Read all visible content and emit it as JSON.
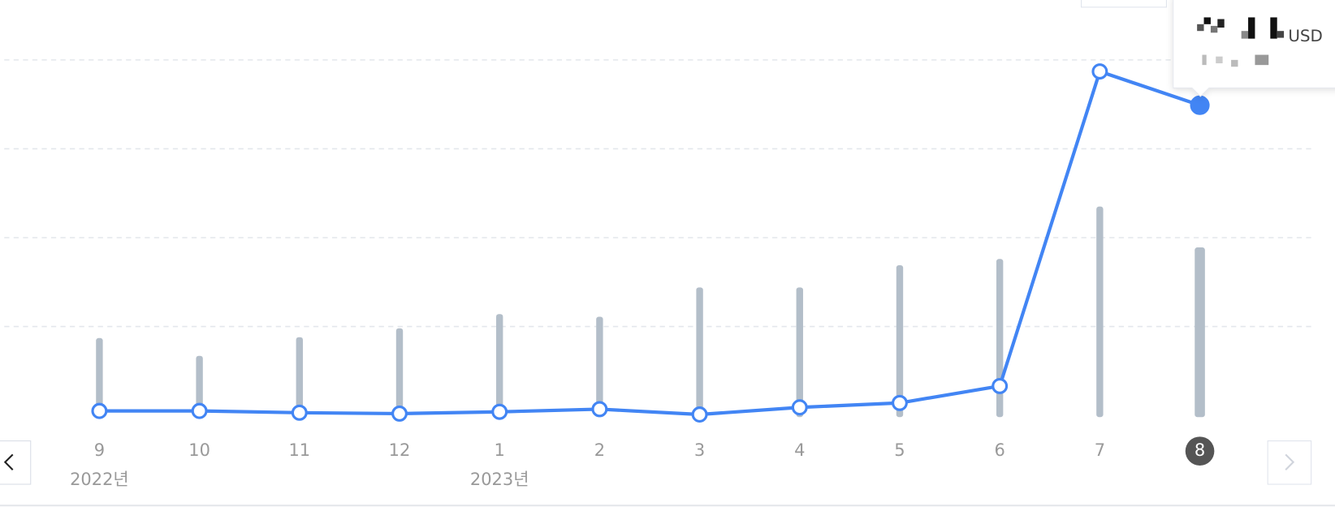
{
  "chart_data": {
    "type": "line-bar",
    "categories": [
      "9",
      "10",
      "11",
      "12",
      "1",
      "2",
      "3",
      "4",
      "5",
      "6",
      "7",
      "8"
    ],
    "year_labels": [
      "2022년",
      null,
      null,
      null,
      "2023년",
      null,
      null,
      null,
      null,
      null,
      null,
      null
    ],
    "series": [
      {
        "type": "bar",
        "color": "#b3bec9",
        "values": [
          0.87,
          0.67,
          0.88,
          0.98,
          1.14,
          1.11,
          1.44,
          1.44,
          1.69,
          1.76,
          2.35,
          1.89
        ]
      },
      {
        "type": "line",
        "color": "#4285f4",
        "values": [
          0.05,
          0.05,
          0.03,
          0.02,
          0.04,
          0.07,
          0.01,
          0.09,
          0.14,
          0.33,
          3.87,
          3.49
        ]
      }
    ],
    "ylim": [
      0,
      4.67
    ],
    "yticks": [
      1,
      2,
      3,
      4
    ],
    "grid": true,
    "selected": 11,
    "tooltip": {
      "unit": "USD"
    }
  }
}
